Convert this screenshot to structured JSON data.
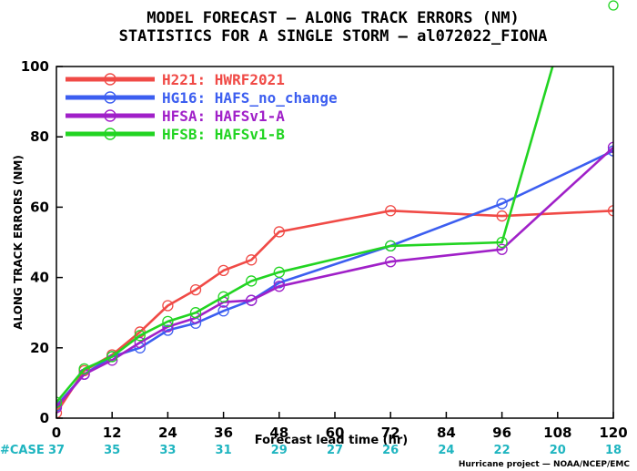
{
  "title_line1": "MODEL FORECAST — ALONG TRACK ERRORS (NM)",
  "title_line2": "STATISTICS FOR A SINGLE STORM — al072022_FIONA",
  "case_label": "#CASE",
  "credit": "Hurricane project — NOAA/NCEP/EMC",
  "chart_data": {
    "type": "line",
    "xlabel": "Forecast lead time (hr)",
    "ylabel": "ALONG TRACK ERRORS (NM)",
    "xlim": [
      0,
      120
    ],
    "ylim": [
      0,
      100
    ],
    "xticks": [
      0,
      12,
      24,
      36,
      48,
      60,
      72,
      84,
      96,
      108,
      120
    ],
    "yticks": [
      0,
      20,
      40,
      60,
      80,
      100
    ],
    "legend_position": "top-left",
    "grid": false,
    "cases": [
      37,
      35,
      33,
      31,
      29,
      27,
      26,
      24,
      22,
      20,
      18
    ],
    "series": [
      {
        "name": "H221: HWRF2021",
        "color": "#f04a46",
        "x": [
          0,
          6,
          12,
          18,
          24,
          30,
          36,
          42,
          48,
          72,
          96,
          120
        ],
        "y": [
          1.5,
          13.5,
          18,
          24.5,
          32,
          36.5,
          42,
          45,
          53,
          59,
          57.5,
          59
        ]
      },
      {
        "name": "HG16: HAFS_no_change",
        "color": "#3c5ef0",
        "x": [
          0,
          6,
          12,
          18,
          24,
          30,
          36,
          42,
          48,
          72,
          96,
          120
        ],
        "y": [
          3.5,
          12.5,
          17.5,
          20,
          25,
          27,
          30.5,
          33.5,
          38.5,
          49,
          61,
          76
        ]
      },
      {
        "name": "HFSA: HAFSv1-A",
        "color": "#a020c8",
        "x": [
          0,
          6,
          12,
          18,
          24,
          30,
          36,
          42,
          48,
          72,
          96,
          120
        ],
        "y": [
          3,
          12.5,
          16.5,
          21.5,
          26,
          28.5,
          33,
          33.5,
          37.5,
          44.5,
          48,
          77
        ]
      },
      {
        "name": "HFSB: HAFSv1-B",
        "color": "#22d422",
        "x": [
          0,
          6,
          12,
          18,
          24,
          30,
          36,
          42,
          48,
          72,
          96,
          120
        ],
        "y": [
          4.5,
          14,
          17.5,
          23.5,
          27.5,
          30,
          34.5,
          39,
          41.5,
          49,
          50,
          160
        ]
      }
    ]
  }
}
